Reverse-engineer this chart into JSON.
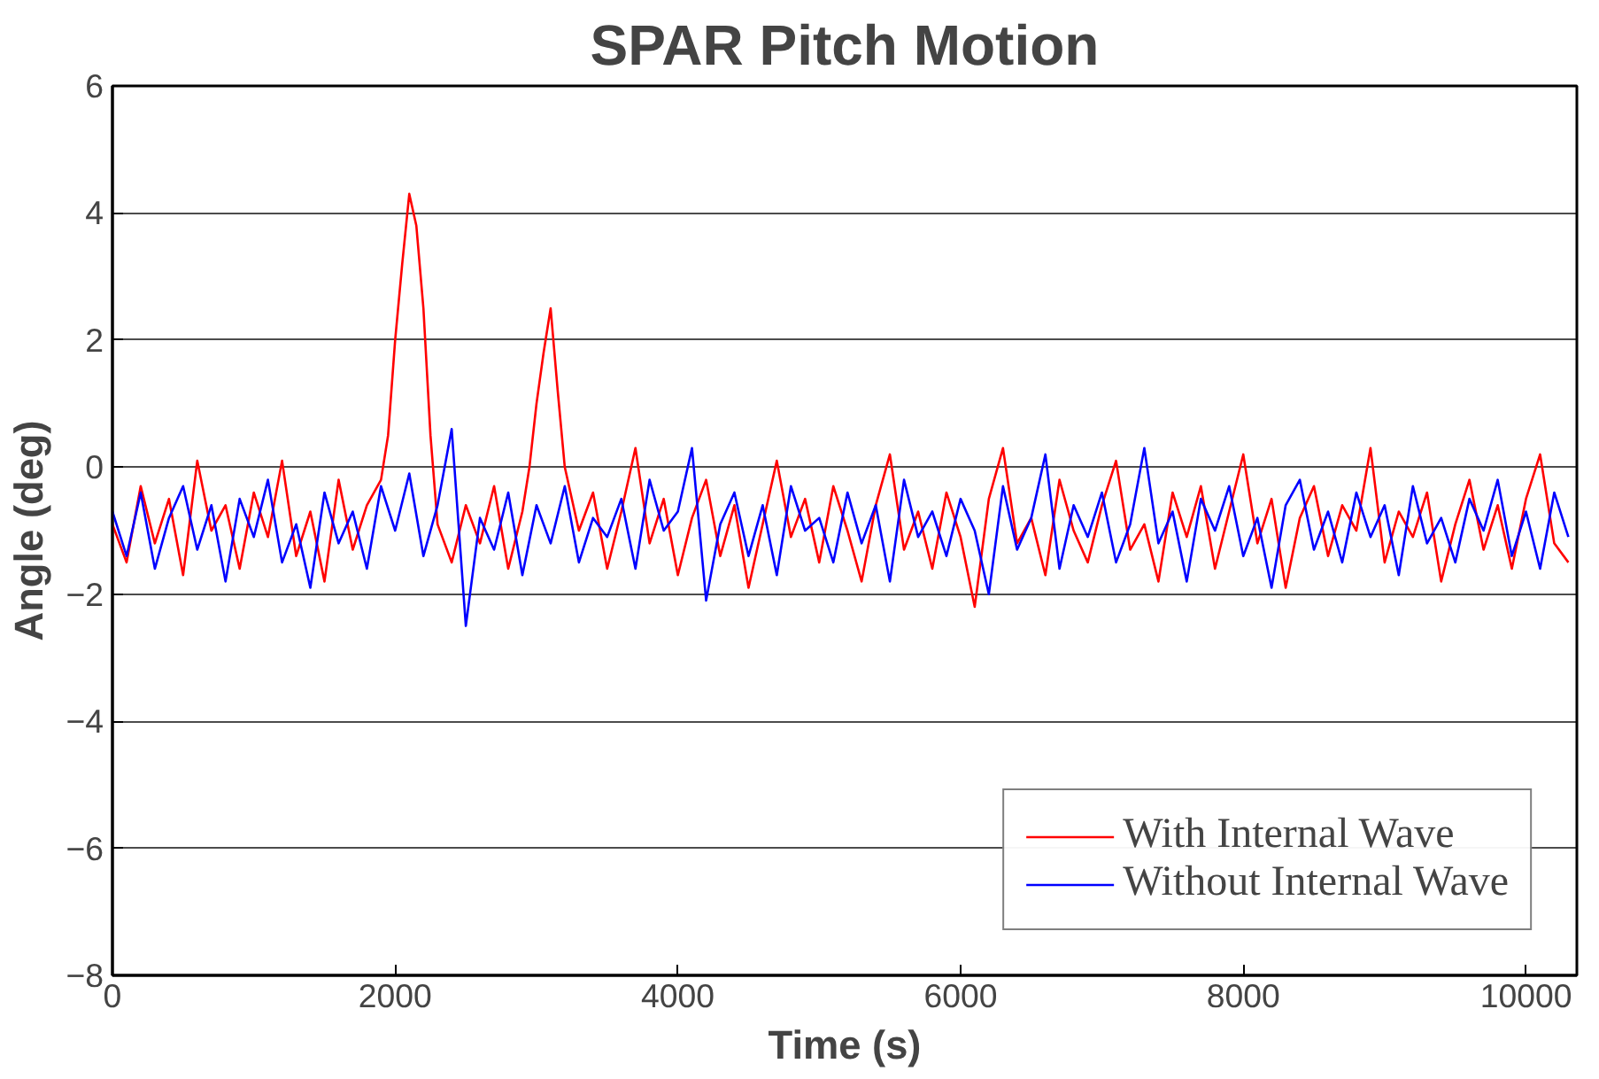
{
  "chart_data": {
    "type": "line",
    "title": "SPAR Pitch Motion",
    "xlabel": "Time (s)",
    "ylabel": "Angle (deg)",
    "xlim": [
      0,
      10360
    ],
    "ylim": [
      -8,
      6
    ],
    "xticks": [
      0,
      2000,
      4000,
      6000,
      8000,
      10000
    ],
    "yticks": [
      -8,
      -6,
      -4,
      -2,
      0,
      2,
      4,
      6
    ],
    "grid": "y",
    "legend": "bottom right",
    "line_style": "solid",
    "marker": "none",
    "series": [
      {
        "name": "With Internal Wave",
        "color": "#ff0000",
        "x": [
          0,
          100,
          200,
          300,
          400,
          500,
          600,
          700,
          800,
          900,
          1000,
          1100,
          1200,
          1300,
          1400,
          1500,
          1600,
          1700,
          1800,
          1900,
          1950,
          2000,
          2050,
          2100,
          2150,
          2200,
          2250,
          2300,
          2400,
          2500,
          2600,
          2700,
          2800,
          2900,
          2950,
          3000,
          3050,
          3100,
          3150,
          3200,
          3300,
          3400,
          3500,
          3600,
          3700,
          3800,
          3900,
          4000,
          4100,
          4200,
          4300,
          4400,
          4500,
          4600,
          4700,
          4800,
          4900,
          5000,
          5100,
          5200,
          5300,
          5400,
          5500,
          5600,
          5700,
          5800,
          5900,
          6000,
          6100,
          6200,
          6300,
          6400,
          6500,
          6600,
          6700,
          6800,
          6900,
          7000,
          7100,
          7200,
          7300,
          7400,
          7500,
          7600,
          7700,
          7800,
          7900,
          8000,
          8100,
          8200,
          8300,
          8400,
          8500,
          8600,
          8700,
          8800,
          8900,
          9000,
          9100,
          9200,
          9300,
          9400,
          9500,
          9600,
          9700,
          9800,
          9900,
          10000,
          10100,
          10200,
          10300
        ],
        "values": [
          -0.9,
          -1.5,
          -0.3,
          -1.2,
          -0.5,
          -1.7,
          0.1,
          -1.0,
          -0.6,
          -1.6,
          -0.4,
          -1.1,
          0.1,
          -1.4,
          -0.7,
          -1.8,
          -0.2,
          -1.3,
          -0.6,
          -0.2,
          0.5,
          2.0,
          3.2,
          4.3,
          3.8,
          2.5,
          0.5,
          -0.9,
          -1.5,
          -0.6,
          -1.2,
          -0.3,
          -1.6,
          -0.7,
          0.0,
          1.0,
          1.8,
          2.5,
          1.2,
          0.0,
          -1.0,
          -0.4,
          -1.6,
          -0.7,
          0.3,
          -1.2,
          -0.5,
          -1.7,
          -0.8,
          -0.2,
          -1.4,
          -0.6,
          -1.9,
          -0.9,
          0.1,
          -1.1,
          -0.5,
          -1.5,
          -0.3,
          -1.0,
          -1.8,
          -0.6,
          0.2,
          -1.3,
          -0.7,
          -1.6,
          -0.4,
          -1.1,
          -2.2,
          -0.5,
          0.3,
          -1.2,
          -0.8,
          -1.7,
          -0.2,
          -1.0,
          -1.5,
          -0.6,
          0.1,
          -1.3,
          -0.9,
          -1.8,
          -0.4,
          -1.1,
          -0.3,
          -1.6,
          -0.7,
          0.2,
          -1.2,
          -0.5,
          -1.9,
          -0.8,
          -0.3,
          -1.4,
          -0.6,
          -1.0,
          0.3,
          -1.5,
          -0.7,
          -1.1,
          -0.4,
          -1.8,
          -0.9,
          -0.2,
          -1.3,
          -0.6,
          -1.6,
          -0.5,
          0.2,
          -1.2,
          -1.5
        ]
      },
      {
        "name": "Without Internal Wave",
        "color": "#0000ff",
        "x": [
          0,
          100,
          200,
          300,
          400,
          500,
          600,
          700,
          800,
          900,
          1000,
          1100,
          1200,
          1300,
          1400,
          1500,
          1600,
          1700,
          1800,
          1900,
          2000,
          2100,
          2200,
          2300,
          2400,
          2500,
          2600,
          2700,
          2800,
          2900,
          3000,
          3100,
          3200,
          3300,
          3400,
          3500,
          3600,
          3700,
          3800,
          3900,
          4000,
          4100,
          4200,
          4300,
          4400,
          4500,
          4600,
          4700,
          4800,
          4900,
          5000,
          5100,
          5200,
          5300,
          5400,
          5500,
          5600,
          5700,
          5800,
          5900,
          6000,
          6100,
          6200,
          6300,
          6400,
          6500,
          6600,
          6700,
          6800,
          6900,
          7000,
          7100,
          7200,
          7300,
          7400,
          7500,
          7600,
          7700,
          7800,
          7900,
          8000,
          8100,
          8200,
          8300,
          8400,
          8500,
          8600,
          8700,
          8800,
          8900,
          9000,
          9100,
          9200,
          9300,
          9400,
          9500,
          9600,
          9700,
          9800,
          9900,
          10000,
          10100,
          10200,
          10300
        ],
        "values": [
          -0.7,
          -1.4,
          -0.4,
          -1.6,
          -0.8,
          -0.3,
          -1.3,
          -0.6,
          -1.8,
          -0.5,
          -1.1,
          -0.2,
          -1.5,
          -0.9,
          -1.9,
          -0.4,
          -1.2,
          -0.7,
          -1.6,
          -0.3,
          -1.0,
          -0.1,
          -1.4,
          -0.6,
          0.6,
          -2.5,
          -0.8,
          -1.3,
          -0.4,
          -1.7,
          -0.6,
          -1.2,
          -0.3,
          -1.5,
          -0.8,
          -1.1,
          -0.5,
          -1.6,
          -0.2,
          -1.0,
          -0.7,
          0.3,
          -2.1,
          -0.9,
          -0.4,
          -1.4,
          -0.6,
          -1.7,
          -0.3,
          -1.0,
          -0.8,
          -1.5,
          -0.4,
          -1.2,
          -0.6,
          -1.8,
          -0.2,
          -1.1,
          -0.7,
          -1.4,
          -0.5,
          -1.0,
          -2.0,
          -0.3,
          -1.3,
          -0.8,
          0.2,
          -1.6,
          -0.6,
          -1.1,
          -0.4,
          -1.5,
          -0.9,
          0.3,
          -1.2,
          -0.7,
          -1.8,
          -0.5,
          -1.0,
          -0.3,
          -1.4,
          -0.8,
          -1.9,
          -0.6,
          -0.2,
          -1.3,
          -0.7,
          -1.5,
          -0.4,
          -1.1,
          -0.6,
          -1.7,
          -0.3,
          -1.2,
          -0.8,
          -1.5,
          -0.5,
          -1.0,
          -0.2,
          -1.4,
          -0.7,
          -1.6,
          -0.4,
          -1.1
        ]
      }
    ]
  }
}
